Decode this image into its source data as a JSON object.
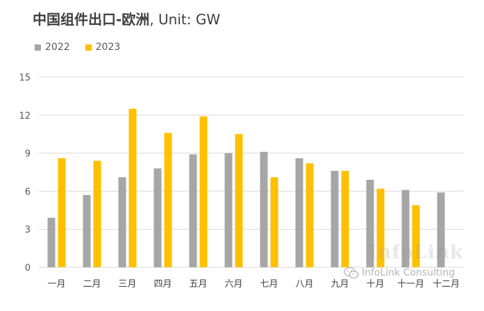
{
  "title": {
    "main": "中国组件出口-欧洲",
    "unit": ", Unit: GW"
  },
  "colors": {
    "series_2022": "#a6a6a6",
    "series_2023": "#ffc000",
    "grid": "#d9d9d9",
    "text": "#595959"
  },
  "chart_data": {
    "type": "bar",
    "title": "中国组件出口-欧洲, Unit: GW",
    "categories": [
      "一月",
      "二月",
      "三月",
      "四月",
      "五月",
      "六月",
      "七月",
      "八月",
      "九月",
      "十月",
      "十一月",
      "十二月"
    ],
    "series": [
      {
        "name": "2022",
        "values": [
          3.9,
          5.7,
          7.1,
          7.8,
          8.9,
          9.0,
          9.1,
          8.6,
          7.6,
          6.9,
          6.1,
          5.9
        ]
      },
      {
        "name": "2023",
        "values": [
          8.6,
          8.4,
          12.5,
          10.6,
          11.9,
          10.5,
          7.1,
          8.2,
          7.6,
          6.2,
          4.9,
          null
        ]
      }
    ],
    "ylim": [
      0,
      15
    ],
    "yticks": [
      0,
      3,
      6,
      9,
      12,
      15
    ],
    "xlabel": "",
    "ylabel": "",
    "grid": true,
    "legend_position": "top-left"
  },
  "watermark": {
    "brand": "InfoLink",
    "caption": "InfoLink Consulting",
    "icon": "wechat-icon"
  }
}
